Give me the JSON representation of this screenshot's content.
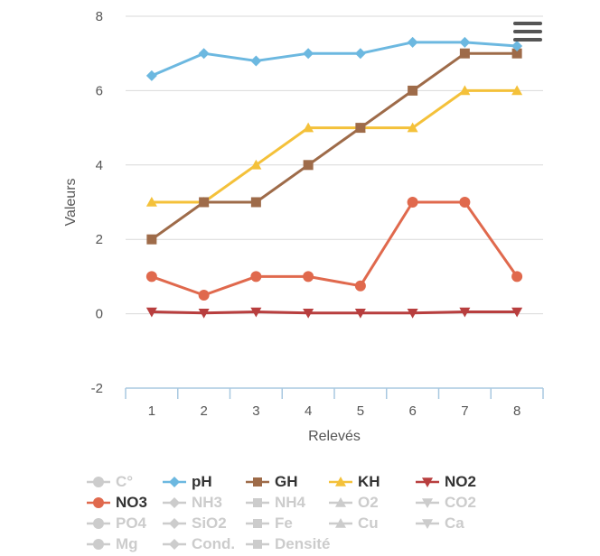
{
  "chart_data": {
    "type": "line",
    "title": "",
    "xlabel": "Relevés",
    "ylabel": "Valeurs",
    "ylim": [
      -2,
      8
    ],
    "yticks": [
      -2,
      0,
      2,
      4,
      6,
      8
    ],
    "categories": [
      "1",
      "2",
      "3",
      "4",
      "5",
      "6",
      "7",
      "8"
    ],
    "grid": true,
    "legend_position": "bottom",
    "series": [
      {
        "name": "pH",
        "color": "#6cb8e0",
        "marker": "diamond",
        "values": [
          6.4,
          7.0,
          6.8,
          7.0,
          7.0,
          7.3,
          7.3,
          7.2
        ]
      },
      {
        "name": "GH",
        "color": "#9e6b49",
        "marker": "square",
        "values": [
          2,
          3,
          3,
          4,
          5,
          6,
          7,
          7
        ]
      },
      {
        "name": "KH",
        "color": "#f4c13a",
        "marker": "triangle",
        "values": [
          3,
          3,
          4,
          5,
          5,
          5,
          6,
          6
        ]
      },
      {
        "name": "NO3",
        "color": "#e0694d",
        "marker": "circle",
        "values": [
          1,
          0.5,
          1,
          1,
          0.75,
          3,
          3,
          1
        ]
      },
      {
        "name": "NO2",
        "color": "#b83e3e",
        "marker": "triangle-down",
        "values": [
          0.05,
          0.02,
          0.05,
          0.02,
          0.02,
          0.02,
          0.05,
          0.05
        ]
      }
    ]
  },
  "legend": {
    "rows": [
      [
        {
          "label": "C°",
          "marker": "circle",
          "active": false,
          "color": "#cccccc"
        },
        {
          "label": "pH",
          "marker": "diamond",
          "active": true,
          "color": "#6cb8e0"
        },
        {
          "label": "GH",
          "marker": "square",
          "active": true,
          "color": "#9e6b49"
        },
        {
          "label": "KH",
          "marker": "triangle",
          "active": true,
          "color": "#f4c13a"
        },
        {
          "label": "NO2",
          "marker": "triangle-down",
          "active": true,
          "color": "#b83e3e"
        }
      ],
      [
        {
          "label": "NO3",
          "marker": "circle",
          "active": true,
          "color": "#e0694d"
        },
        {
          "label": "NH3",
          "marker": "diamond",
          "active": false,
          "color": "#cccccc"
        },
        {
          "label": "NH4",
          "marker": "square",
          "active": false,
          "color": "#cccccc"
        },
        {
          "label": "O2",
          "marker": "triangle",
          "active": false,
          "color": "#cccccc"
        },
        {
          "label": "CO2",
          "marker": "triangle-down",
          "active": false,
          "color": "#cccccc"
        }
      ],
      [
        {
          "label": "PO4",
          "marker": "circle",
          "active": false,
          "color": "#cccccc"
        },
        {
          "label": "SiO2",
          "marker": "diamond",
          "active": false,
          "color": "#cccccc"
        },
        {
          "label": "Fe",
          "marker": "square",
          "active": false,
          "color": "#cccccc"
        },
        {
          "label": "Cu",
          "marker": "triangle",
          "active": false,
          "color": "#cccccc"
        },
        {
          "label": "Ca",
          "marker": "triangle-down",
          "active": false,
          "color": "#cccccc"
        }
      ],
      [
        {
          "label": "Mg",
          "marker": "circle",
          "active": false,
          "color": "#cccccc"
        },
        {
          "label": "Cond.",
          "marker": "diamond",
          "active": false,
          "color": "#cccccc"
        },
        {
          "label": "Densité",
          "marker": "square",
          "active": false,
          "color": "#cccccc"
        }
      ]
    ]
  },
  "menu_icon": "hamburger-menu-icon"
}
